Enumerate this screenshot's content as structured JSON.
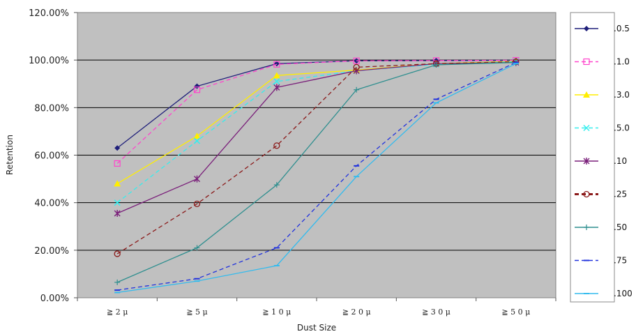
{
  "chart_data": {
    "type": "line",
    "title": "",
    "xlabel": "Dust Size",
    "ylabel": "Retention",
    "categories": [
      "≧ 2 μ",
      "≧ 5 μ",
      "≧ 1 0 μ",
      "≧ 2 0 μ",
      "≧ 3 0 μ",
      "≧ 5 0 μ"
    ],
    "ylim": [
      0,
      1.2
    ],
    "yticks": [
      "0.00%",
      "20.00%",
      "40.00%",
      "60.00%",
      "80.00%",
      "100.00%",
      "120.00%"
    ],
    "grid": true,
    "legend_position": "right",
    "series": [
      {
        "name": ".0.5",
        "label": ".0.5",
        "color": "#1f1f7a",
        "dash": "solid",
        "marker": "diamond",
        "values": [
          0.63,
          0.89,
          0.985,
          0.997,
          0.998,
          0.999
        ]
      },
      {
        "name": ".1.0",
        "label": ".1.0",
        "color": "#ff44cc",
        "dash": "dashed",
        "marker": "square-open",
        "values": [
          0.565,
          0.875,
          0.982,
          0.997,
          0.998,
          0.999
        ]
      },
      {
        "name": ".3.0",
        "label": ".3.0",
        "color": "#ffee00",
        "dash": "solid",
        "marker": "triangle",
        "values": [
          0.48,
          0.68,
          0.935,
          0.958,
          0.985,
          0.995
        ]
      },
      {
        "name": ".5.0",
        "label": ".5.0",
        "color": "#33eeee",
        "dash": "dashed",
        "marker": "x",
        "values": [
          0.4,
          0.66,
          0.91,
          0.955,
          0.982,
          0.993
        ]
      },
      {
        "name": ".10",
        "label": ".10",
        "color": "#7a1f7a",
        "dash": "solid",
        "marker": "asterisk",
        "values": [
          0.355,
          0.5,
          0.885,
          0.955,
          0.985,
          0.99
        ]
      },
      {
        "name": ".25",
        "label": ".25",
        "color": "#8b1a1a",
        "dash": "dashed",
        "marker": "circle-open",
        "values": [
          0.185,
          0.395,
          0.64,
          0.97,
          0.985,
          0.993
        ]
      },
      {
        "name": ".50",
        "label": ".50",
        "color": "#2f8f8f",
        "dash": "solid",
        "marker": "plus",
        "values": [
          0.065,
          0.21,
          0.475,
          0.875,
          0.98,
          0.99
        ]
      },
      {
        "name": ".75",
        "label": ".75",
        "color": "#2233dd",
        "dash": "dashed",
        "marker": "dash",
        "values": [
          0.032,
          0.08,
          0.21,
          0.555,
          0.835,
          0.99
        ]
      },
      {
        "name": ".100",
        "label": ".100",
        "color": "#33bbee",
        "dash": "solid",
        "marker": "dash",
        "values": [
          0.022,
          0.07,
          0.135,
          0.51,
          0.82,
          0.985
        ]
      }
    ]
  }
}
